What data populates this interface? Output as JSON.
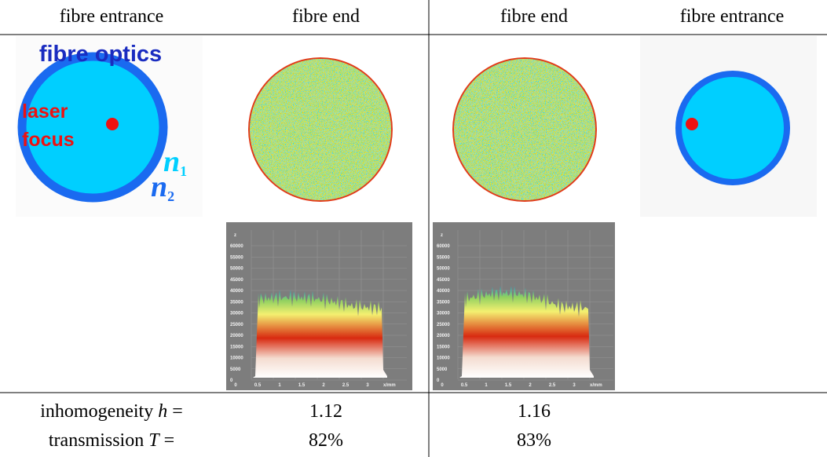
{
  "table": {
    "header": [
      "fibre entrance",
      "fibre end",
      "fibre end",
      "fibre entrance"
    ],
    "diagram": {
      "title": "fibre optics",
      "laser": [
        "laser",
        "focus"
      ],
      "n1": {
        "symbol": "n",
        "subscript": "1"
      },
      "n2": {
        "symbol": "n",
        "subscript": "2"
      }
    },
    "plots": {
      "z_label": "z",
      "x_label": "x/mm",
      "zticks": [
        0,
        5000,
        10000,
        15000,
        20000,
        25000,
        30000,
        35000,
        40000,
        45000,
        50000,
        55000,
        60000
      ],
      "xticks": [
        0,
        0.5,
        1,
        1.5,
        2,
        2.5,
        3
      ]
    },
    "rows": [
      {
        "label": "inhomogeneity",
        "symbol": "h",
        "eq": "=",
        "cells": [
          "1.12",
          "1.16"
        ]
      },
      {
        "label": "transmission",
        "symbol": "T",
        "eq": "=",
        "cells": [
          "82%",
          "83%"
        ]
      }
    ]
  }
}
